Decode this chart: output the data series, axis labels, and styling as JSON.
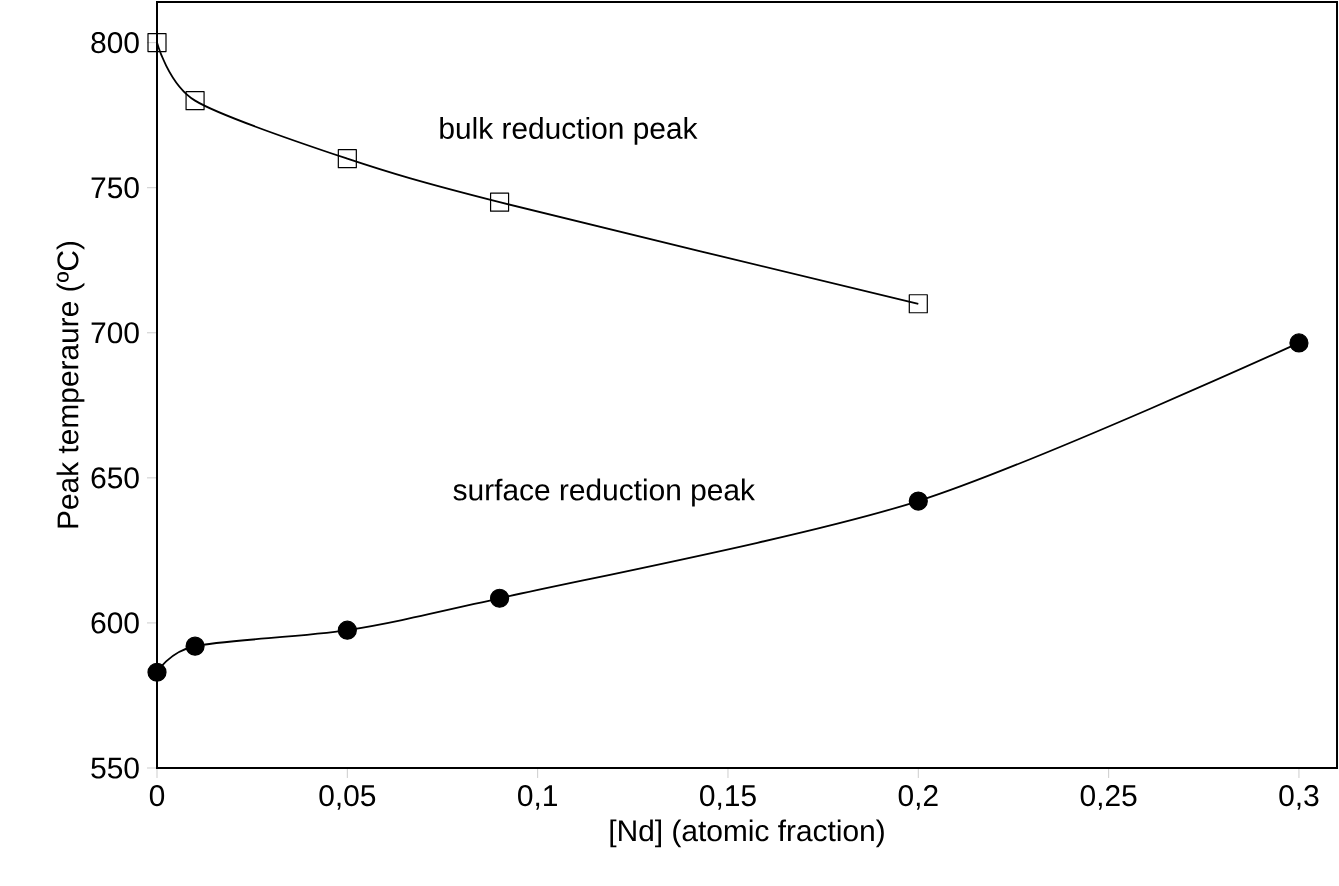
{
  "chart_data": {
    "type": "line",
    "xlabel": "[Nd] (atomic fraction)",
    "ylabel": "Peak temperaure (ºC)",
    "x": [
      0,
      0.01,
      0.05,
      0.09,
      0.2,
      0.3
    ],
    "series": [
      {
        "name": "bulk reduction peak",
        "color": "#000000",
        "marker": "square",
        "values": [
          800,
          780,
          760,
          745,
          710,
          null
        ]
      },
      {
        "name": "surface reduction peak",
        "color": "#000000",
        "marker": "circle",
        "values": [
          583,
          592,
          597.5,
          608.5,
          642,
          696.5
        ]
      }
    ],
    "xlim": [
      0,
      0.31
    ],
    "ylim": [
      550,
      814
    ],
    "xticks": [
      0,
      {
        "value": 0.05,
        "label": "0,05"
      },
      {
        "value": 0.1,
        "label": "0,1"
      },
      {
        "value": 0.15,
        "label": "0,15"
      },
      {
        "value": 0.2,
        "label": "0,2"
      },
      {
        "value": 0.25,
        "label": "0,25"
      },
      {
        "value": 0.3,
        "label": "0,3"
      }
    ],
    "yticks": [
      550,
      600,
      650,
      700,
      750,
      800
    ],
    "grid": false
  }
}
